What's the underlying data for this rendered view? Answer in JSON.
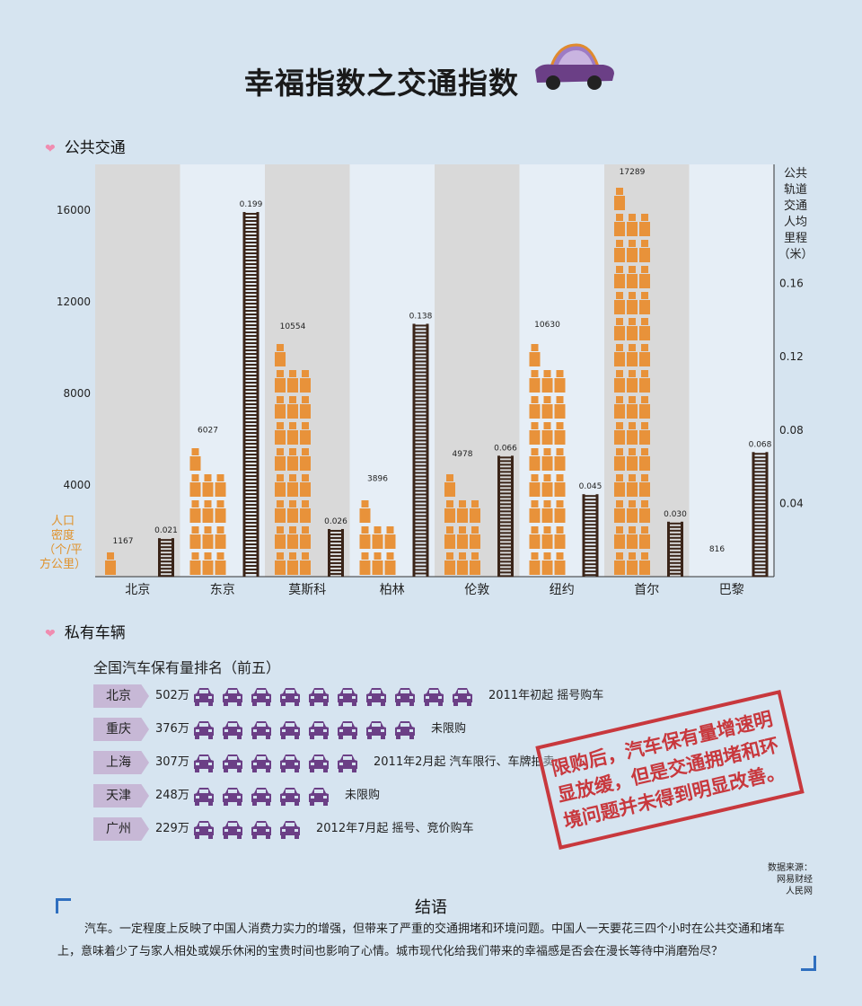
{
  "title": "幸福指数之交通指数",
  "public_section": {
    "heading": "公共交通"
  },
  "private_section": {
    "heading": "私有车辆"
  },
  "chart_data": {
    "type": "bar",
    "categories": [
      "北京",
      "东京",
      "莫斯科",
      "柏林",
      "伦敦",
      "纽约",
      "首尔",
      "巴黎"
    ],
    "series": [
      {
        "name": "人口密度（个/平方公里）",
        "axis": "left",
        "values": [
          1167,
          6027,
          10554,
          3896,
          4978,
          10630,
          17289,
          816
        ],
        "data_labels": [
          "1167",
          "6027",
          "10554",
          "3896",
          "4978",
          "10630",
          "17289",
          "816"
        ]
      },
      {
        "name": "公共轨道交通人均里程（米）",
        "axis": "right",
        "values": [
          0.021,
          0.199,
          0.026,
          0.138,
          0.066,
          0.045,
          0.03,
          0.068
        ],
        "data_labels": [
          "0.021",
          "0.199",
          "0.026",
          "0.138",
          "0.066",
          "0.045",
          "0.030",
          "0.068"
        ]
      }
    ],
    "ylabel_left": "人口密度（个/平方公里）",
    "ylabel_right": "公共轨道交通人均里程（米）",
    "ylabel_left_lines": [
      "人口",
      "密度",
      "（个/平",
      "方公里）"
    ],
    "ylabel_right_lines": [
      "公共",
      "轨道",
      "交通",
      "人均",
      "里程",
      "（米）"
    ],
    "yticks_left": [
      4000,
      8000,
      12000,
      16000
    ],
    "yticks_right": [
      0.04,
      0.08,
      0.12,
      0.16
    ],
    "ylim_left": [
      0,
      18000
    ],
    "ylim_right": [
      0,
      0.225
    ],
    "colors": {
      "person": "#e8923a",
      "track": "#3a2418",
      "band_dark": "#d9d9d9",
      "band_light": "#e6eef6"
    }
  },
  "ranking": {
    "heading": "全国汽车保有量排名（前五）",
    "unit_note": "each car icon ≈ 50万",
    "car_color": "#6b3f86",
    "rows": [
      {
        "city": "北京",
        "amount": "502万",
        "cars": 10,
        "note": "2011年初起  摇号购车"
      },
      {
        "city": "重庆",
        "amount": "376万",
        "cars": 8,
        "note": "未限购"
      },
      {
        "city": "上海",
        "amount": "307万",
        "cars": 6,
        "note": "2011年2月起  汽车限行、车牌拍卖"
      },
      {
        "city": "天津",
        "amount": "248万",
        "cars": 5,
        "note": "未限购"
      },
      {
        "city": "广州",
        "amount": "229万",
        "cars": 4,
        "note": "2012年7月起  摇号、竞价购车"
      }
    ]
  },
  "stamp": {
    "text": "限购后，汽车保有量增速明显放缓，但是交通拥堵和环境问题并未得到明显改善。"
  },
  "source": {
    "label": "数据来源：",
    "lines": [
      "网易财经",
      "人民网"
    ]
  },
  "conclusion": {
    "title": "结语",
    "text": "汽车。一定程度上反映了中国人消费力实力的增强，但带来了严重的交通拥堵和环境问题。中国人一天要花三四个小时在公共交通和堵车上，意味着少了与家人相处或娱乐休闲的宝贵时间也影响了心情。城市现代化给我们带来的幸福感是否会在漫长等待中消磨殆尽？"
  }
}
